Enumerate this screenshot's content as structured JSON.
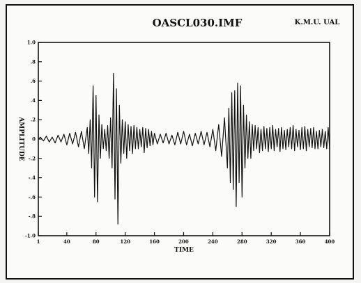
{
  "chart_data": {
    "type": "line",
    "title": "OASCL030.IMF",
    "corner_label": "K.M.U.  UAL",
    "xlabel": "TIME",
    "ylabel": "AMPLITUDE",
    "xlim": [
      1,
      400
    ],
    "ylim": [
      -1.0,
      1.0
    ],
    "x_ticks": [
      1,
      40,
      80,
      120,
      160,
      200,
      240,
      280,
      320,
      360,
      400
    ],
    "y_ticks": [
      1.0,
      0.8,
      0.6,
      0.4,
      0.2,
      0.0,
      -0.2,
      -0.4,
      -0.6,
      -0.8,
      -1.0
    ],
    "x_tick_labels": [
      "1",
      "40",
      "80",
      "120",
      "160",
      "200",
      "240",
      "280",
      "320",
      "360",
      "400"
    ],
    "y_tick_labels": [
      "1.0",
      ".8",
      ".6",
      ".4",
      ".2",
      "0",
      "-.2",
      "-.4",
      "-.6",
      "-.8",
      "-1.0"
    ],
    "grid": false,
    "series": [
      {
        "x": [
          1,
          4,
          8,
          12,
          16,
          20,
          24,
          28,
          32,
          36,
          40,
          44,
          48,
          52,
          56,
          60,
          64,
          68,
          70,
          72,
          74,
          76,
          78,
          80,
          82,
          84,
          86,
          88,
          90,
          92,
          94,
          96,
          98,
          100,
          102,
          104,
          106,
          108,
          110,
          112,
          114,
          116,
          118,
          120,
          122,
          124,
          126,
          128,
          130,
          132,
          134,
          136,
          138,
          140,
          142,
          144,
          146,
          148,
          150,
          152,
          154,
          156,
          158,
          160,
          164,
          168,
          172,
          176,
          180,
          184,
          188,
          192,
          196,
          200,
          204,
          208,
          212,
          216,
          220,
          224,
          228,
          232,
          236,
          240,
          244,
          248,
          252,
          256,
          260,
          262,
          264,
          266,
          268,
          270,
          272,
          274,
          276,
          278,
          280,
          282,
          284,
          286,
          288,
          290,
          292,
          294,
          296,
          298,
          300,
          302,
          304,
          306,
          308,
          310,
          312,
          314,
          316,
          318,
          320,
          322,
          324,
          326,
          328,
          330,
          332,
          334,
          336,
          338,
          340,
          342,
          344,
          346,
          348,
          350,
          352,
          354,
          356,
          358,
          360,
          362,
          364,
          366,
          368,
          370,
          372,
          374,
          376,
          378,
          380,
          382,
          384,
          386,
          388,
          390,
          392,
          394,
          396,
          398,
          400
        ],
        "y": [
          0.0,
          0.02,
          -0.02,
          0.03,
          -0.03,
          0.02,
          -0.04,
          0.04,
          -0.03,
          0.05,
          -0.06,
          0.06,
          -0.05,
          0.07,
          -0.08,
          0.08,
          -0.1,
          0.12,
          -0.15,
          0.2,
          -0.3,
          0.55,
          -0.6,
          0.45,
          -0.65,
          0.25,
          -0.2,
          0.15,
          -0.1,
          0.1,
          -0.12,
          0.14,
          -0.2,
          0.22,
          -0.3,
          0.68,
          -0.62,
          0.52,
          -0.88,
          0.35,
          -0.25,
          0.2,
          -0.15,
          0.18,
          -0.2,
          0.15,
          -0.12,
          0.13,
          -0.15,
          0.14,
          -0.1,
          0.12,
          -0.1,
          0.1,
          -0.08,
          0.12,
          -0.14,
          0.11,
          -0.09,
          0.1,
          -0.07,
          0.08,
          -0.06,
          0.06,
          -0.05,
          0.05,
          -0.04,
          0.06,
          -0.05,
          0.04,
          -0.06,
          0.07,
          -0.05,
          0.08,
          -0.06,
          0.05,
          -0.07,
          0.06,
          -0.05,
          0.08,
          -0.06,
          0.07,
          -0.08,
          0.1,
          -0.12,
          0.15,
          -0.18,
          0.22,
          -0.3,
          0.32,
          -0.45,
          0.48,
          -0.52,
          0.5,
          -0.7,
          0.58,
          -0.45,
          0.55,
          -0.6,
          0.35,
          -0.3,
          0.25,
          -0.2,
          0.18,
          -0.2,
          0.15,
          -0.12,
          0.14,
          -0.1,
          0.12,
          -0.14,
          0.1,
          -0.12,
          0.13,
          -0.1,
          0.11,
          -0.13,
          0.12,
          -0.1,
          0.14,
          -0.12,
          0.1,
          -0.08,
          0.11,
          -0.13,
          0.12,
          -0.1,
          0.09,
          -0.11,
          0.1,
          -0.08,
          0.12,
          -0.1,
          0.14,
          -0.12,
          0.1,
          -0.08,
          0.09,
          -0.11,
          0.12,
          -0.1,
          0.13,
          -0.12,
          0.1,
          -0.08,
          0.11,
          -0.09,
          0.12,
          -0.1,
          0.08,
          -0.1,
          0.09,
          -0.08,
          0.1,
          -0.09,
          0.08,
          -0.1,
          0.12,
          -0.1
        ]
      }
    ]
  }
}
